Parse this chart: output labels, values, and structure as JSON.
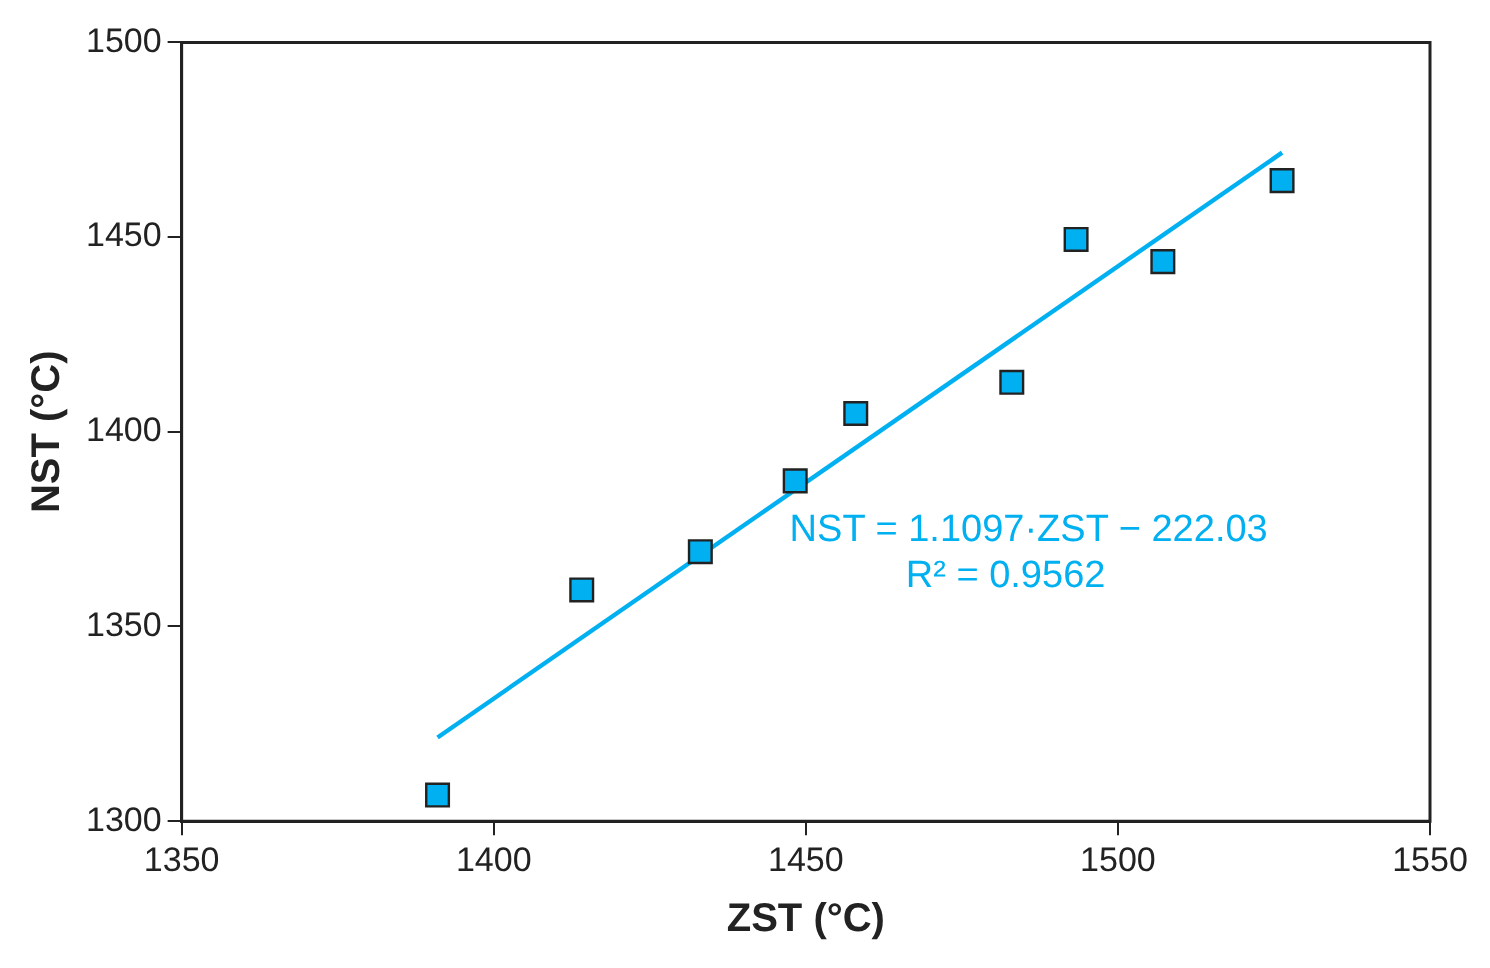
{
  "chart_data": {
    "type": "scatter",
    "xlabel": "ZST (°C)",
    "ylabel": "NST (°C)",
    "xlim": [
      1350,
      1550
    ],
    "xticks": [
      1350,
      1400,
      1450,
      1500,
      1550
    ],
    "ylim": [
      1300,
      1500
    ],
    "yticks": [
      1300,
      1350,
      1400,
      1450,
      1500
    ],
    "grid": false,
    "legend": false,
    "series": [
      {
        "marker": "square",
        "color": "#00b0f0",
        "x": [
          1391.0,
          1414.1,
          1433.1,
          1448.3,
          1458.0,
          1483.0,
          1493.3,
          1507.2,
          1526.3
        ],
        "values": [
          1306.7,
          1359.4,
          1369.2,
          1387.4,
          1404.7,
          1412.7,
          1449.4,
          1443.7,
          1464.5
        ]
      },
      {
        "type": "line",
        "marker": "none",
        "color": "#00b0f0",
        "x": [
          1391.0,
          1526.3
        ],
        "values": [
          1321.5,
          1471.7
        ]
      }
    ],
    "annotations": [
      "NST = 1.1097·ZST − 222.03",
      "R² = 0.9562"
    ]
  }
}
